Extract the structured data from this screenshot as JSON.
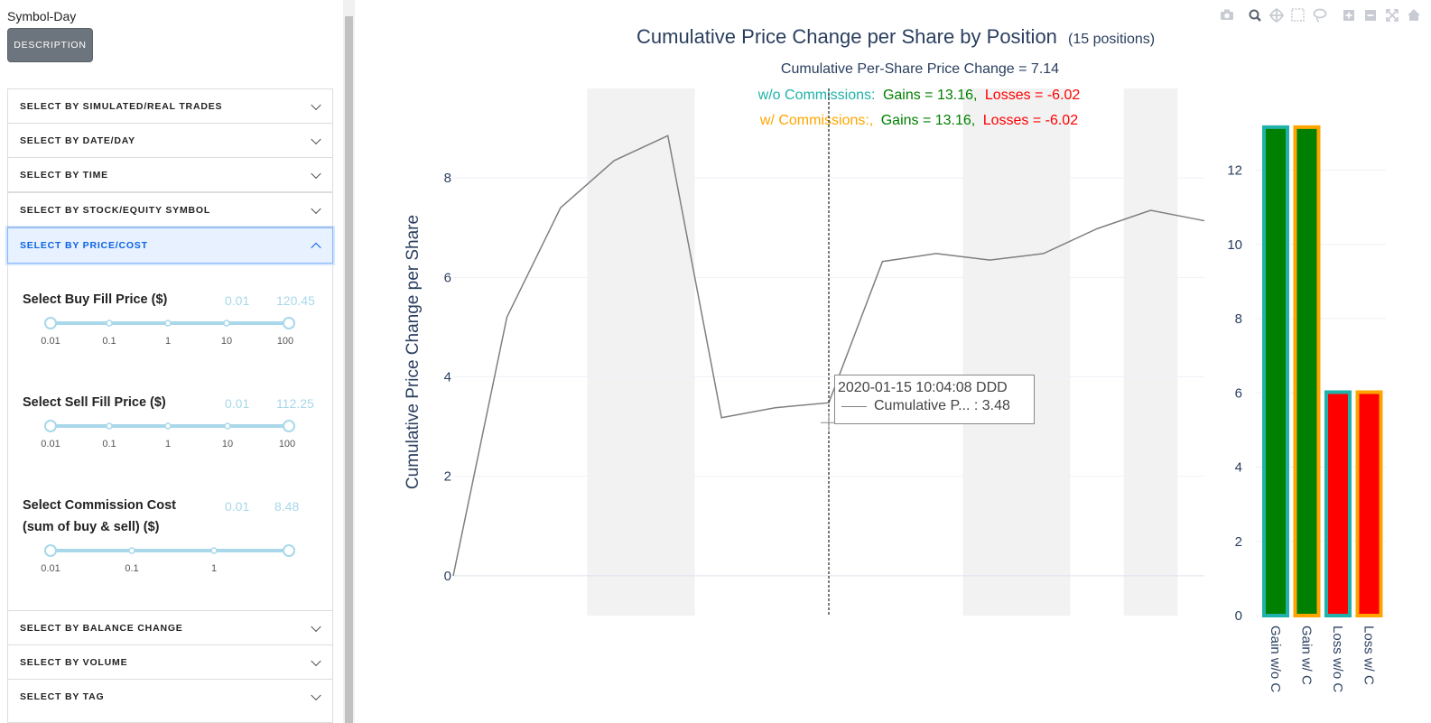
{
  "app": {
    "title": "Symbol-Day",
    "description_button": "DESCRIPTION"
  },
  "accordion": {
    "items": [
      {
        "label": "SELECT BY SIMULATED/REAL TRADES",
        "open": false
      },
      {
        "label": "SELECT BY DATE/DAY",
        "open": false
      },
      {
        "label": "SELECT BY TIME",
        "open": false
      },
      {
        "label": "SELECT BY STOCK/EQUITY SYMBOL",
        "open": false
      },
      {
        "label": "SELECT BY PRICE/COST",
        "open": true
      },
      {
        "label": "SELECT BY BALANCE CHANGE",
        "open": false
      },
      {
        "label": "SELECT BY VOLUME",
        "open": false
      },
      {
        "label": "SELECT BY TAG",
        "open": false
      }
    ]
  },
  "sliders": [
    {
      "label": "Select Buy Fill Price ($)",
      "label2": "",
      "min_value": "0.01",
      "max_value": "120.45",
      "ticks": [
        "0.01",
        "0.1",
        "1",
        "10",
        "100"
      ]
    },
    {
      "label": "Select Sell Fill Price ($)",
      "label2": "",
      "min_value": "0.01",
      "max_value": "112.25",
      "ticks": [
        "0.01",
        "0.1",
        "1",
        "10",
        "100"
      ]
    },
    {
      "label": "Select Commission Cost",
      "label2": "(sum of buy & sell) ($)",
      "min_value": "0.01",
      "max_value": "8.48",
      "ticks": [
        "0.01",
        "0.1",
        "1"
      ]
    }
  ],
  "chart_data": [
    {
      "type": "line",
      "title": "Cumulative Price Change per Share by Position",
      "title_note": "(15 positions)",
      "subtitle": "Cumulative Per-Share Price Change = 7.14",
      "summary_rows": [
        {
          "prefix": "w/o Commissions:",
          "gains": "Gains = 13.16,",
          "losses": "Losses = -6.02"
        },
        {
          "prefix": "w/ Commissions:,",
          "gains": "Gains = 13.16,",
          "losses": "Losses = -6.02"
        }
      ],
      "ylabel": "Cumulative Price Change per Share",
      "ylim": [
        -0.8,
        9.8
      ],
      "yticks": [
        0,
        2,
        4,
        6,
        8
      ],
      "x": [
        0,
        1,
        2,
        3,
        4,
        5,
        6,
        7,
        8,
        9,
        10,
        11,
        12,
        13,
        14
      ],
      "y": [
        0,
        5.2,
        7.4,
        8.35,
        8.85,
        3.18,
        3.38,
        3.48,
        6.32,
        6.48,
        6.35,
        6.48,
        6.98,
        7.35,
        7.14
      ],
      "shaded_positions": [
        [
          2.5,
          4.5
        ],
        [
          9.5,
          11.5
        ],
        [
          12.5,
          13.5
        ]
      ],
      "grid": true,
      "hover": {
        "title": "2020-01-15 10:04:08 DDD",
        "label": "Cumulative P... : 3.48",
        "x": 7
      }
    },
    {
      "type": "bar",
      "categories": [
        "Gain w/o C",
        "Gain w/ C",
        "Loss w/o C",
        "Loss w/ C"
      ],
      "values": [
        13.16,
        13.16,
        6.02,
        6.02
      ],
      "fill_colors": [
        "#008000",
        "#008000",
        "#ff0000",
        "#ff0000"
      ],
      "outline_colors": [
        "#20b2aa",
        "#ffa500",
        "#20b2aa",
        "#ffa500"
      ],
      "ylim": [
        0,
        13.4
      ],
      "yticks": [
        0,
        2,
        4,
        6,
        8,
        10,
        12
      ],
      "grid": true
    }
  ],
  "colors": {
    "line": "#7f7f7f",
    "wo_commission": "#20b2aa",
    "w_commission": "#ffa500",
    "gain": "#008000",
    "loss": "#ff0000",
    "text": "#2a3f5f"
  },
  "modebar": [
    "camera-icon",
    "zoom-icon",
    "pan-icon",
    "box-select-icon",
    "lasso-icon",
    "zoom-in-icon",
    "zoom-out-icon",
    "autoscale-icon",
    "home-icon"
  ]
}
